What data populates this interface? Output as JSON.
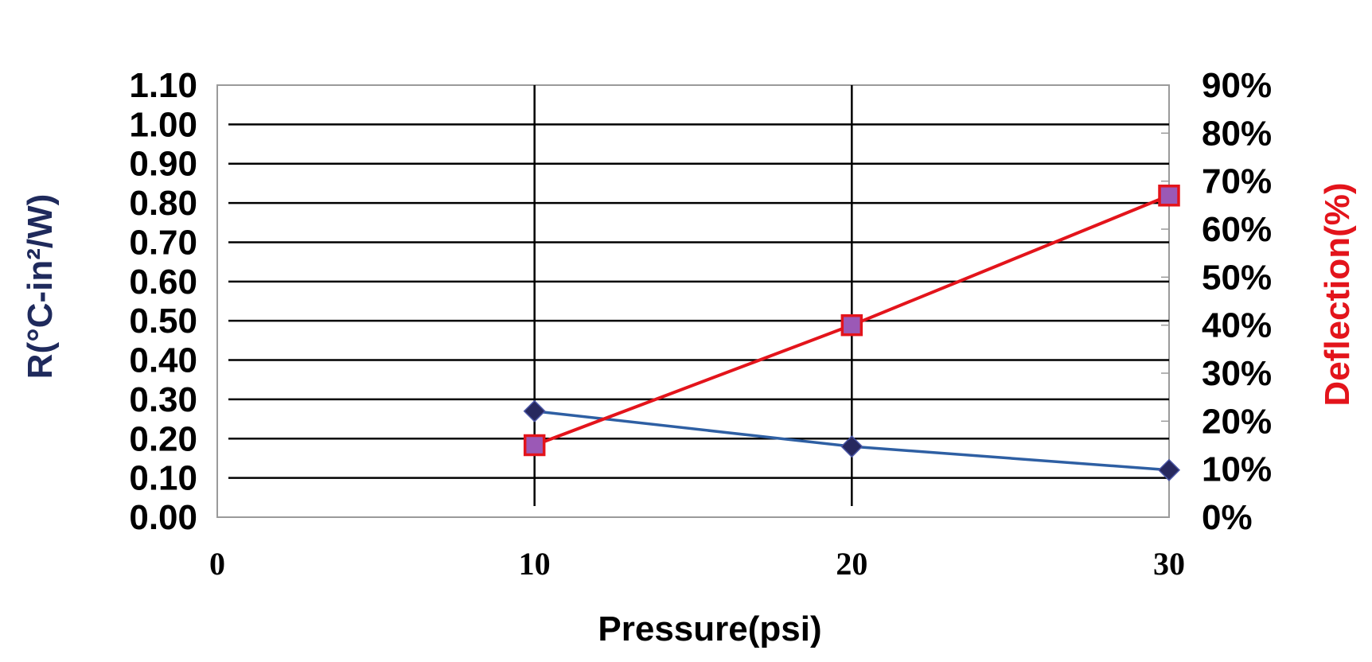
{
  "chart_data": {
    "type": "line",
    "title": "",
    "xlabel": "Pressure(psi)",
    "ylabel": "R(°C-in²/W)",
    "y2label": "Deflection(%)",
    "xlim": [
      0,
      30
    ],
    "ylim": [
      0,
      1.1
    ],
    "y2lim": [
      0,
      90
    ],
    "x_ticks": [
      "0",
      "10",
      "20",
      "30"
    ],
    "y_ticks": [
      "0.00",
      "0.10",
      "0.20",
      "0.30",
      "0.40",
      "0.50",
      "0.60",
      "0.70",
      "0.80",
      "0.90",
      "1.00",
      "1.10"
    ],
    "y2_ticks": [
      "0%",
      "10%",
      "20%",
      "30%",
      "40%",
      "50%",
      "60%",
      "70%",
      "80%",
      "90%"
    ],
    "grid": true,
    "series": [
      {
        "axis": "left",
        "marker": "diamond",
        "color": "#2e5fa3",
        "marker_color": "#27285e",
        "x": [
          10,
          20,
          30
        ],
        "values": [
          0.27,
          0.18,
          0.12
        ]
      },
      {
        "axis": "right",
        "marker": "square",
        "color": "#e3141b",
        "marker_color": "#9b59b6",
        "x": [
          10,
          20,
          30
        ],
        "values": [
          15,
          40,
          67
        ]
      }
    ],
    "colors": {
      "ylabel": "#1f2a5c",
      "y2label": "#e3141b"
    }
  }
}
